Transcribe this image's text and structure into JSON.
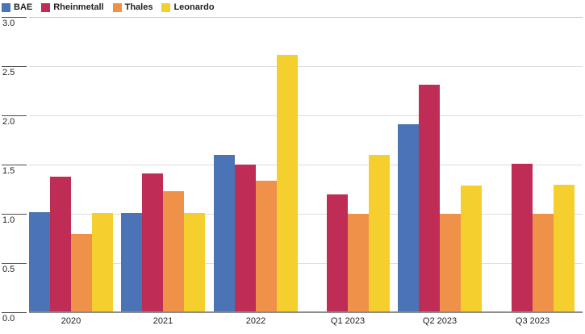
{
  "legend": {
    "items": [
      {
        "label": "BAE",
        "color": "#4a74b5"
      },
      {
        "label": "Rheinmetall",
        "color": "#bf2c55"
      },
      {
        "label": "Thales",
        "color": "#f0914a"
      },
      {
        "label": "Leonardo",
        "color": "#f4cf2d"
      }
    ]
  },
  "chart_data": {
    "type": "bar",
    "title": "",
    "categories": [
      "2020",
      "2021",
      "2022",
      "Q1 2023",
      "Q2 2023",
      "Q3 2023"
    ],
    "series": [
      {
        "name": "BAE",
        "color": "#4a74b5",
        "values": [
          1.01,
          1.0,
          1.59,
          null,
          1.9,
          null
        ]
      },
      {
        "name": "Rheinmetall",
        "color": "#bf2c55",
        "values": [
          1.37,
          1.4,
          1.49,
          1.19,
          2.3,
          1.5
        ]
      },
      {
        "name": "Thales",
        "color": "#f0914a",
        "values": [
          0.79,
          1.22,
          1.33,
          0.99,
          0.99,
          0.99
        ]
      },
      {
        "name": "Leonardo",
        "color": "#f4cf2d",
        "values": [
          1.0,
          1.0,
          2.61,
          1.59,
          1.28,
          1.29
        ]
      }
    ],
    "xlabel": "",
    "ylabel": "",
    "ylim": [
      0,
      3
    ],
    "yticks": [
      "3.0",
      "2.5",
      "2.0",
      "1.5",
      "1.0",
      "0.5",
      "0.0"
    ],
    "grid": true,
    "legend_position": "top-left"
  },
  "colors": {
    "gridline": "#dcdcdc",
    "gridline_top": "#c9c9c9",
    "tick_segment": "#4a4a4a",
    "axis_line": "#8c8c8c",
    "text": "#1f1f1f",
    "background": "#ffffff"
  }
}
